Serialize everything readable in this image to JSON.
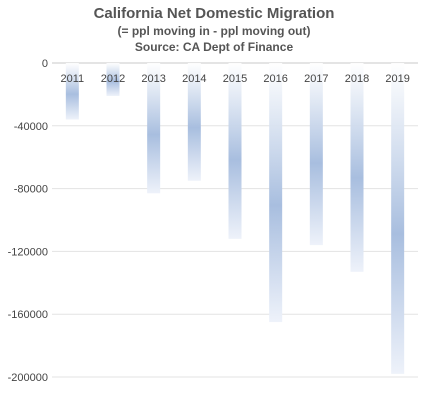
{
  "chart_data": {
    "type": "bar",
    "title": "California Net Domestic Migration",
    "subtitle_1": "(= ppl moving in - ppl moving out)",
    "subtitle_2": "Source: CA Dept of Finance",
    "categories": [
      "2011",
      "2012",
      "2013",
      "2014",
      "2015",
      "2016",
      "2017",
      "2018",
      "2019"
    ],
    "values": [
      -36000,
      -21000,
      -83000,
      -75000,
      -112000,
      -165000,
      -116000,
      -133000,
      -198000
    ],
    "ylim": [
      -200000,
      0
    ],
    "yticks": [
      0,
      -40000,
      -80000,
      -120000,
      -160000,
      -200000
    ],
    "ytick_labels": [
      "0",
      "-40000",
      "-80000",
      "-120000",
      "-160000",
      "-200000"
    ],
    "grid": true,
    "bar_color": "#a8bedf"
  }
}
